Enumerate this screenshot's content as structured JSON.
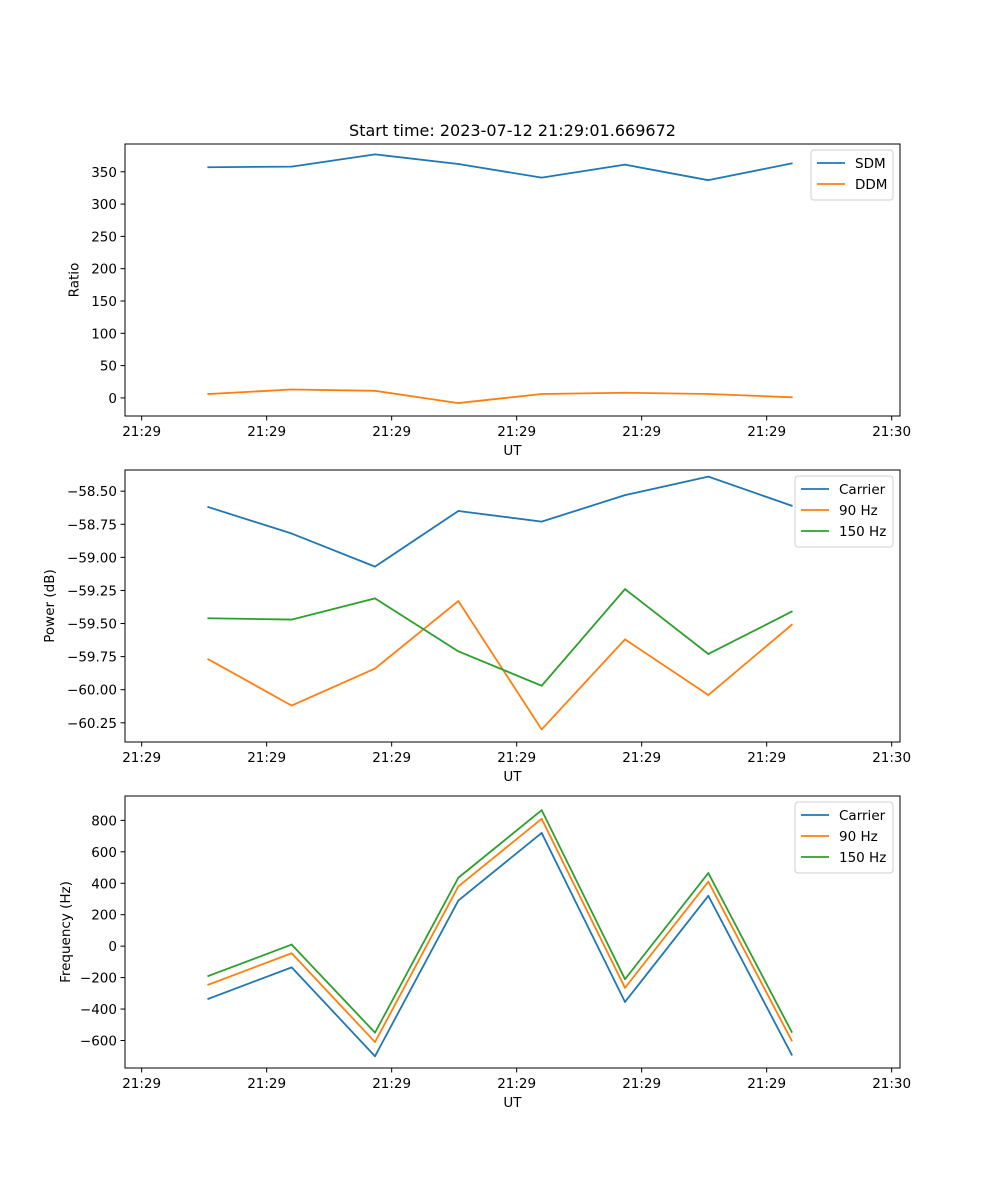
{
  "figure_title": "Start time: 2023-07-12 21:29:01.669672",
  "chart_data": [
    {
      "type": "line",
      "title": "Start time: 2023-07-12 21:29:01.669672",
      "xlabel": "UT",
      "ylabel": "Ratio",
      "x": [
        1,
        2,
        3,
        4,
        5,
        6,
        7,
        8
      ],
      "xlim": [
        0,
        9.3
      ],
      "x_ticks": [
        0.2,
        1.7,
        3.2,
        4.7,
        6.2,
        7.7,
        9.2
      ],
      "x_tick_labels": [
        "21:29",
        "21:29",
        "21:29",
        "21:29",
        "21:29",
        "21:29",
        "21:30"
      ],
      "ylim": [
        -28,
        393
      ],
      "y_ticks": [
        0,
        50,
        100,
        150,
        200,
        250,
        300,
        350
      ],
      "y_tick_labels": [
        "0",
        "50",
        "100",
        "150",
        "200",
        "250",
        "300",
        "350"
      ],
      "legend_position": "top-right",
      "series": [
        {
          "name": "SDM",
          "color": "#1f77b4",
          "values": [
            357,
            358,
            377,
            362,
            341,
            361,
            337,
            363
          ]
        },
        {
          "name": "DDM",
          "color": "#ff7f0e",
          "values": [
            6,
            13,
            11,
            -8,
            6,
            8,
            6,
            1
          ]
        }
      ]
    },
    {
      "type": "line",
      "title": "",
      "xlabel": "UT",
      "ylabel": "Power (dB)",
      "x": [
        1,
        2,
        3,
        4,
        5,
        6,
        7,
        8
      ],
      "xlim": [
        0,
        9.3
      ],
      "x_ticks": [
        0.2,
        1.7,
        3.2,
        4.7,
        6.2,
        7.7,
        9.2
      ],
      "x_tick_labels": [
        "21:29",
        "21:29",
        "21:29",
        "21:29",
        "21:29",
        "21:29",
        "21:30"
      ],
      "ylim": [
        -60.395,
        -58.34
      ],
      "y_ticks": [
        -58.5,
        -58.75,
        -59.0,
        -59.25,
        -59.5,
        -59.75,
        -60.0,
        -60.25
      ],
      "y_tick_labels": [
        "−58.50",
        "−58.75",
        "−59.00",
        "−59.25",
        "−59.50",
        "−59.75",
        "−60.00",
        "−60.25"
      ],
      "legend_position": "top-right",
      "series": [
        {
          "name": "Carrier",
          "color": "#1f77b4",
          "values": [
            -58.62,
            -58.82,
            -59.07,
            -58.65,
            -58.73,
            -58.53,
            -58.39,
            -58.61
          ]
        },
        {
          "name": "90 Hz",
          "color": "#ff7f0e",
          "values": [
            -59.77,
            -60.12,
            -59.84,
            -59.33,
            -60.3,
            -59.62,
            -60.04,
            -59.51
          ]
        },
        {
          "name": "150 Hz",
          "color": "#2ca02c",
          "values": [
            -59.46,
            -59.47,
            -59.31,
            -59.71,
            -59.97,
            -59.24,
            -59.73,
            -59.41
          ]
        }
      ]
    },
    {
      "type": "line",
      "title": "",
      "xlabel": "UT",
      "ylabel": "Frequency (Hz)",
      "x": [
        1,
        2,
        3,
        4,
        5,
        6,
        7,
        8
      ],
      "xlim": [
        0,
        9.3
      ],
      "x_ticks": [
        0.2,
        1.7,
        3.2,
        4.7,
        6.2,
        7.7,
        9.2
      ],
      "x_tick_labels": [
        "21:29",
        "21:29",
        "21:29",
        "21:29",
        "21:29",
        "21:29",
        "21:30"
      ],
      "ylim": [
        -775,
        955
      ],
      "y_ticks": [
        800,
        600,
        400,
        200,
        0,
        -200,
        -400,
        -600
      ],
      "y_tick_labels": [
        "800",
        "600",
        "400",
        "200",
        "0",
        "−200",
        "−400",
        "−600"
      ],
      "legend_position": "top-right",
      "series": [
        {
          "name": "Carrier",
          "color": "#1f77b4",
          "values": [
            -335,
            -135,
            -700,
            290,
            720,
            -355,
            320,
            -690
          ]
        },
        {
          "name": "90 Hz",
          "color": "#ff7f0e",
          "values": [
            -245,
            -45,
            -610,
            380,
            810,
            -265,
            410,
            -600
          ]
        },
        {
          "name": "150 Hz",
          "color": "#2ca02c",
          "values": [
            -190,
            10,
            -550,
            435,
            865,
            -210,
            465,
            -545
          ]
        }
      ]
    }
  ]
}
